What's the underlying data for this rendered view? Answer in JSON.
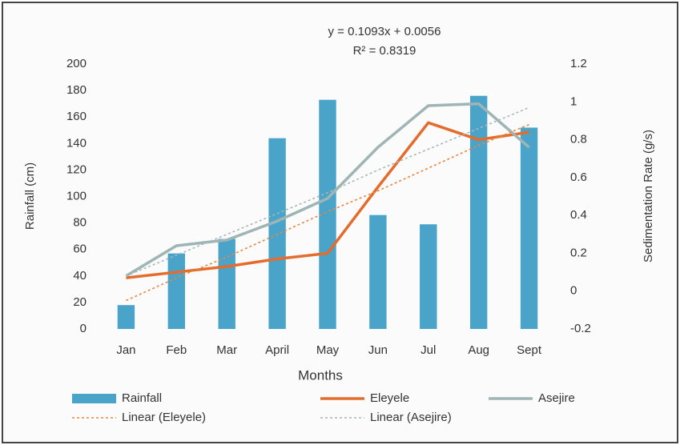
{
  "chart_data": {
    "type": "combo",
    "annotations": [
      "y = 0.1093x + 0.0056",
      "R² = 0.8319"
    ],
    "x_label": "Months",
    "y_label": "Rainfall (cm)",
    "y2_label": "Sedimentation Rate (g/s)",
    "categories": [
      "Jan",
      "Feb",
      "Mar",
      "April",
      "May",
      "Jun",
      "Jul",
      "Aug",
      "Sept"
    ],
    "ylim": [
      0,
      200
    ],
    "yticks": [
      0,
      20,
      40,
      60,
      80,
      100,
      120,
      140,
      160,
      180,
      200
    ],
    "y2lim": [
      -0.2,
      1.2
    ],
    "y2ticks": [
      -0.2,
      0,
      0.2,
      0.4,
      0.6,
      0.8,
      1,
      1.2
    ],
    "grid": false,
    "legend": "bottom",
    "series": [
      {
        "name": "Rainfall",
        "type": "bar",
        "color": "#4aa3c9",
        "values": [
          18,
          57,
          68,
          144,
          173,
          86,
          79,
          176,
          152
        ]
      },
      {
        "name": "Eleyele",
        "type": "line",
        "axis": "y2",
        "color": "#e46c2c",
        "values": [
          0.07,
          0.1,
          0.13,
          0.17,
          0.2,
          0.55,
          0.89,
          0.8,
          0.84
        ]
      },
      {
        "name": "Asejire",
        "type": "line",
        "axis": "y2",
        "color": "#9fb4b4",
        "values": [
          0.08,
          0.24,
          0.27,
          0.37,
          0.49,
          0.76,
          0.98,
          0.99,
          0.76
        ]
      },
      {
        "name": "Linear (Eleyele)",
        "type": "line",
        "dashed": true,
        "axis": "y2",
        "color": "#e8863f",
        "values": [
          -0.05,
          0.07,
          0.18,
          0.3,
          0.42,
          0.53,
          0.65,
          0.77,
          0.88
        ]
      },
      {
        "name": "Linear (Asejire)",
        "type": "line",
        "dashed": true,
        "axis": "y2",
        "color": "#a8b8b8",
        "values": [
          0.08,
          0.19,
          0.3,
          0.41,
          0.52,
          0.64,
          0.75,
          0.86,
          0.97
        ]
      }
    ]
  }
}
